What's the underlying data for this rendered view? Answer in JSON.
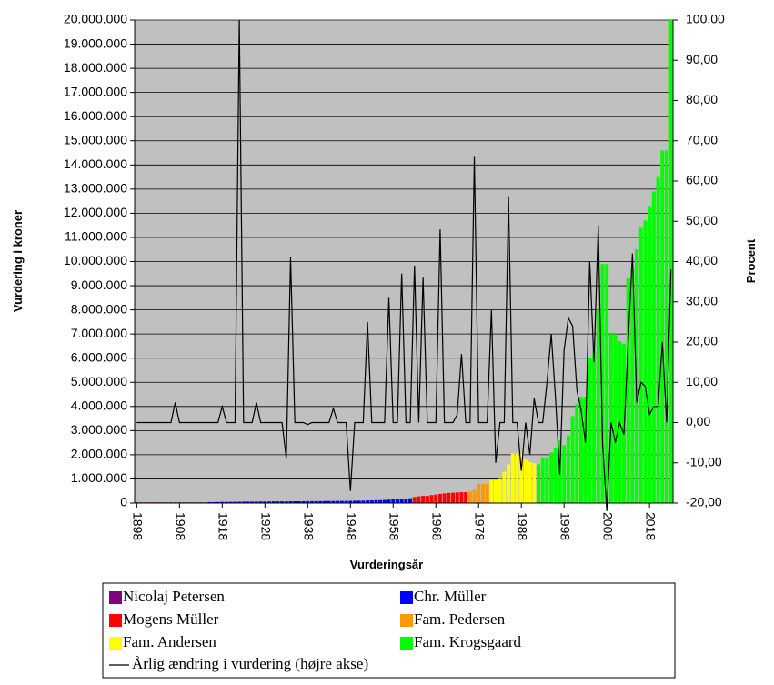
{
  "chart_data": {
    "type": "bar",
    "x_label": "Vurderingsår",
    "y_label": "Vurdering i kroner",
    "y2_label": "Procent",
    "grid": true,
    "legend": "bottom",
    "xlim": [
      1897.5,
      2023.5
    ],
    "xticks": [
      1898,
      1908,
      1918,
      1928,
      1938,
      1948,
      1958,
      1968,
      1978,
      1988,
      1998,
      2008,
      2018
    ],
    "ylim": [
      0,
      20000000
    ],
    "yticks": [
      0,
      {
        "value": 1000000,
        "label": "1.000.000"
      },
      {
        "value": 2000000,
        "label": "2.000.000"
      },
      {
        "value": 3000000,
        "label": "3.000.000"
      },
      {
        "value": 4000000,
        "label": "4.000.000"
      },
      {
        "value": 5000000,
        "label": "5.000.000"
      },
      {
        "value": 6000000,
        "label": "6.000.000"
      },
      {
        "value": 7000000,
        "label": "7.000.000"
      },
      {
        "value": 8000000,
        "label": "8.000.000"
      },
      {
        "value": 9000000,
        "label": "9.000.000"
      },
      {
        "value": 10000000,
        "label": "10.000.000"
      },
      {
        "value": 11000000,
        "label": "11.000.000"
      },
      {
        "value": 12000000,
        "label": "12.000.000"
      },
      {
        "value": 13000000,
        "label": "13.000.000"
      },
      {
        "value": 14000000,
        "label": "14.000.000"
      },
      {
        "value": 15000000,
        "label": "15.000.000"
      },
      {
        "value": 16000000,
        "label": "16.000.000"
      },
      {
        "value": 17000000,
        "label": "17.000.000"
      },
      {
        "value": 18000000,
        "label": "18.000.000"
      },
      {
        "value": 19000000,
        "label": "19.000.000"
      },
      {
        "value": 20000000,
        "label": "20.000.000"
      }
    ],
    "y2lim": [
      -20,
      100
    ],
    "y2ticks": [
      {
        "value": -20,
        "label": "-20,00"
      },
      {
        "value": -10,
        "label": "-10,00"
      },
      {
        "value": 0,
        "label": "0,00"
      },
      {
        "value": 10,
        "label": "10,00"
      },
      {
        "value": 20,
        "label": "20,00"
      },
      {
        "value": 30,
        "label": "30,00"
      },
      {
        "value": 40,
        "label": "40,00"
      },
      {
        "value": 50,
        "label": "50,00"
      },
      {
        "value": 60,
        "label": "60,00"
      },
      {
        "value": 70,
        "label": "70,00"
      },
      {
        "value": 80,
        "label": "80,00"
      },
      {
        "value": 90,
        "label": "90,00"
      },
      {
        "value": 100,
        "label": "100,00"
      }
    ],
    "series": [
      {
        "name": "Nicolaj Petersen",
        "color": "#800080",
        "x": [
          1898,
          1899,
          1900,
          1901,
          1902,
          1903,
          1904,
          1905,
          1906,
          1907,
          1908,
          1909,
          1910,
          1911,
          1912,
          1913,
          1914
        ],
        "values": [
          30000,
          30000,
          30000,
          30000,
          30000,
          30000,
          30000,
          30000,
          30000,
          30000,
          30000,
          30000,
          30000,
          30000,
          30000,
          30000,
          30000
        ]
      },
      {
        "name": "Chr. Müller",
        "color": "#0000ff",
        "x": [
          1915,
          1916,
          1917,
          1918,
          1919,
          1920,
          1921,
          1922,
          1923,
          1924,
          1925,
          1926,
          1927,
          1928,
          1929,
          1930,
          1931,
          1932,
          1933,
          1934,
          1935,
          1936,
          1937,
          1938,
          1939,
          1940,
          1941,
          1942,
          1943,
          1944,
          1945,
          1946,
          1947,
          1948,
          1949,
          1950,
          1951,
          1952,
          1953,
          1954,
          1955,
          1956,
          1957,
          1958,
          1959,
          1960,
          1961,
          1962
        ],
        "values": [
          40000,
          40000,
          45000,
          50000,
          50000,
          50000,
          55000,
          55000,
          60000,
          60000,
          60000,
          60000,
          65000,
          65000,
          65000,
          70000,
          70000,
          70000,
          70000,
          75000,
          75000,
          75000,
          75000,
          80000,
          80000,
          80000,
          80000,
          85000,
          85000,
          85000,
          90000,
          90000,
          90000,
          95000,
          95000,
          100000,
          100000,
          110000,
          110000,
          120000,
          120000,
          130000,
          140000,
          150000,
          160000,
          170000,
          180000,
          200000
        ]
      },
      {
        "name": "Mogens Müller",
        "color": "#ff0000",
        "x": [
          1963,
          1964,
          1965,
          1966,
          1967,
          1968,
          1969,
          1970,
          1971,
          1972,
          1973,
          1974,
          1975
        ],
        "values": [
          250000,
          280000,
          300000,
          300000,
          330000,
          350000,
          380000,
          400000,
          420000,
          430000,
          440000,
          450000,
          450000
        ]
      },
      {
        "name": "Fam. Pedersen",
        "color": "#ff9900",
        "x": [
          1976,
          1977,
          1978,
          1979,
          1980
        ],
        "values": [
          480000,
          550000,
          800000,
          800000,
          800000
        ]
      },
      {
        "name": "Fam. Andersen",
        "color": "#ffff00",
        "x": [
          1981,
          1982,
          1983,
          1984,
          1985,
          1986,
          1987,
          1988,
          1989,
          1990,
          1991
        ],
        "values": [
          950000,
          950000,
          1000000,
          1300000,
          1600000,
          2050000,
          2050000,
          2050000,
          1800000,
          1700000,
          1650000
        ]
      },
      {
        "name": "Fam. Krogsgaard",
        "color": "#00ff00",
        "x": [
          1992,
          1993,
          1994,
          1995,
          1996,
          1997,
          1998,
          1999,
          2000,
          2001,
          2002,
          2003,
          2004,
          2005,
          2006,
          2007,
          2008,
          2009,
          2010,
          2011,
          2012,
          2013,
          2014,
          2015,
          2016,
          2017,
          2018,
          2019,
          2020,
          2021,
          2022,
          2023
        ],
        "values": [
          1600000,
          1900000,
          1900000,
          2100000,
          2300000,
          2600000,
          2400000,
          2800000,
          3600000,
          4100000,
          4400000,
          4400000,
          6000000,
          6300000,
          8000000,
          9900000,
          9900000,
          7000000,
          7000000,
          6700000,
          6600000,
          9300000,
          9700000,
          10500000,
          11400000,
          11700000,
          12300000,
          12900000,
          13500000,
          14600000,
          14600000,
          20000000
        ]
      },
      {
        "name": "Årlig ændring i vurdering (højre akse)",
        "color": "#000000",
        "type": "line",
        "axis": "y2",
        "x": [
          1898,
          1899,
          1900,
          1901,
          1902,
          1903,
          1904,
          1905,
          1906,
          1907,
          1908,
          1909,
          1910,
          1911,
          1912,
          1913,
          1914,
          1915,
          1916,
          1917,
          1918,
          1919,
          1920,
          1921,
          1922,
          1923,
          1924,
          1925,
          1926,
          1927,
          1928,
          1929,
          1930,
          1931,
          1932,
          1933,
          1934,
          1935,
          1936,
          1937,
          1938,
          1939,
          1940,
          1941,
          1942,
          1943,
          1944,
          1945,
          1946,
          1947,
          1948,
          1949,
          1950,
          1951,
          1952,
          1953,
          1954,
          1955,
          1956,
          1957,
          1958,
          1959,
          1960,
          1961,
          1962,
          1963,
          1964,
          1965,
          1966,
          1967,
          1968,
          1969,
          1970,
          1971,
          1972,
          1973,
          1974,
          1975,
          1976,
          1977,
          1978,
          1979,
          1980,
          1981,
          1982,
          1983,
          1984,
          1985,
          1986,
          1987,
          1988,
          1989,
          1990,
          1991,
          1992,
          1993,
          1994,
          1995,
          1996,
          1997,
          1998,
          1999,
          2000,
          2001,
          2002,
          2003,
          2004,
          2005,
          2006,
          2007,
          2008,
          2009,
          2010,
          2011,
          2012,
          2013,
          2014,
          2015,
          2016,
          2017,
          2018,
          2019,
          2020,
          2021,
          2022,
          2023
        ],
        "values": [
          0,
          0,
          0,
          0,
          0,
          0,
          0,
          0,
          0,
          5,
          0,
          0,
          0,
          0,
          0,
          0,
          0,
          0,
          0,
          0,
          4,
          0,
          0,
          0,
          100,
          0,
          0,
          0,
          5,
          0,
          0,
          0,
          0,
          0,
          0,
          -9,
          41,
          0,
          0,
          0,
          -0.5,
          0,
          0,
          0,
          0,
          0,
          3.5,
          0,
          0,
          0,
          -17,
          0,
          0,
          0,
          25,
          0,
          0,
          0,
          0,
          31,
          0,
          0,
          37,
          0,
          0,
          39,
          0,
          36,
          0,
          0,
          0,
          48,
          0,
          0,
          0,
          2,
          17,
          0,
          0,
          66,
          0,
          0,
          0,
          28,
          -10,
          0,
          0,
          56,
          0,
          0,
          -12,
          0,
          -8,
          6,
          0,
          0,
          10,
          22,
          6,
          -13,
          18,
          26,
          24,
          8,
          3,
          -5,
          40,
          15,
          49,
          -5,
          -22,
          0,
          -5,
          0,
          -3,
          20,
          42,
          5,
          10,
          9,
          2,
          4,
          4,
          20,
          0,
          38
        ]
      }
    ]
  }
}
